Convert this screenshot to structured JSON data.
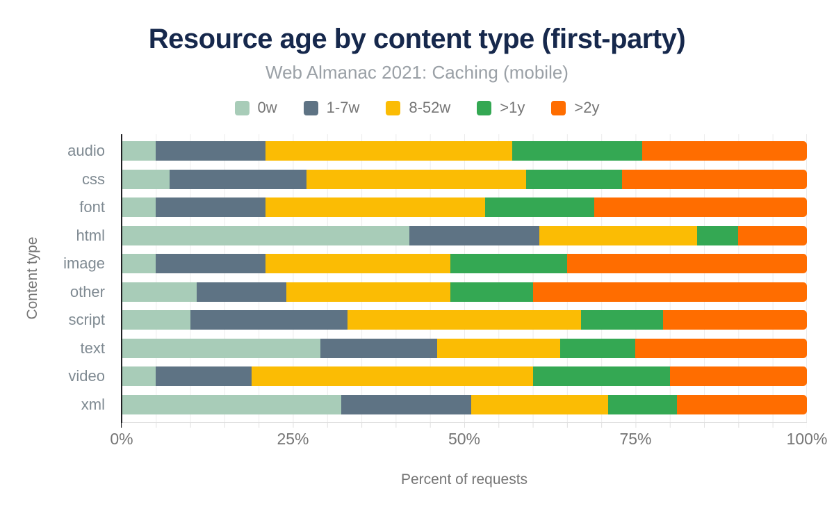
{
  "title": "Resource age by content type (first-party)",
  "subtitle": "Web Almanac 2021: Caching (mobile)",
  "chart_data": {
    "type": "bar",
    "orientation": "horizontal",
    "stacked": true,
    "title": "Resource age by content type (first-party)",
    "subtitle": "Web Almanac 2021: Caching (mobile)",
    "categories": [
      "audio",
      "css",
      "font",
      "html",
      "image",
      "other",
      "script",
      "text",
      "video",
      "xml"
    ],
    "series": [
      {
        "name": "0w",
        "color": "#a8ccb8",
        "values": [
          5,
          7,
          5,
          42,
          5,
          11,
          10,
          29,
          5,
          32
        ]
      },
      {
        "name": "1-7w",
        "color": "#5e7384",
        "values": [
          16,
          20,
          16,
          19,
          16,
          13,
          23,
          17,
          14,
          19
        ]
      },
      {
        "name": "8-52w",
        "color": "#fbbc04",
        "values": [
          36,
          32,
          32,
          23,
          27,
          24,
          34,
          18,
          41,
          20
        ]
      },
      {
        "name": ">1y",
        "color": "#34a853",
        "values": [
          19,
          14,
          16,
          6,
          17,
          12,
          12,
          11,
          20,
          10
        ]
      },
      {
        "name": ">2y",
        "color": "#ff6d00",
        "values": [
          24,
          27,
          31,
          10,
          35,
          40,
          21,
          25,
          20,
          19
        ]
      }
    ],
    "xlabel": "Percent of requests",
    "ylabel": "Content type",
    "x_ticks": [
      "0%",
      "25%",
      "50%",
      "75%",
      "100%"
    ],
    "x_tick_values": [
      0,
      25,
      50,
      75,
      100
    ],
    "xlim": [
      0,
      100
    ],
    "grid": "vertical minor gridlines every 5%",
    "legend_position": "top"
  },
  "colors": {
    "title": "#16284c",
    "subtitle": "#9aa0a6",
    "axis_text": "#757575",
    "category_text": "#7f8a92",
    "gridline": "#ececec",
    "axis_line": "#202124",
    "background": "#ffffff"
  }
}
